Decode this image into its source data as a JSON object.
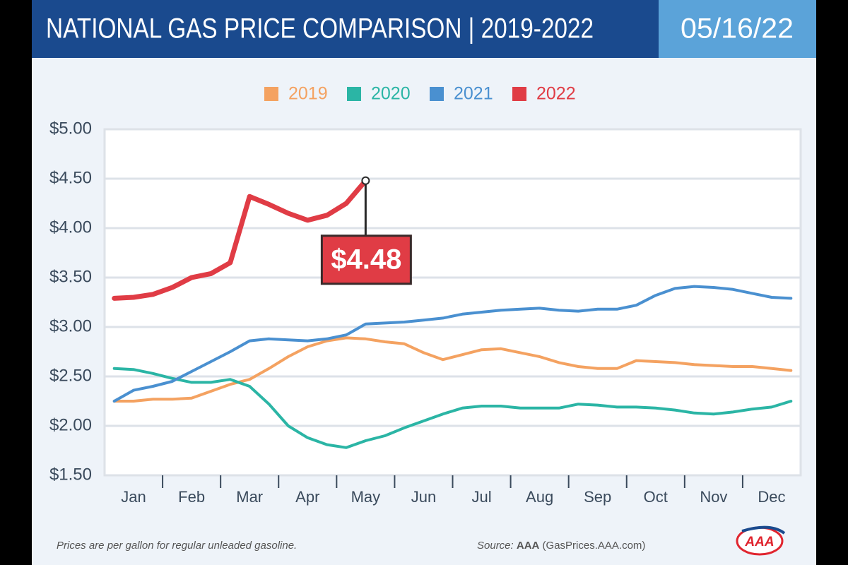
{
  "chart_data": {
    "type": "line",
    "title": "NATIONAL GAS PRICE COMPARISON | 2019-2022",
    "date": "05/16/22",
    "categories": [
      null,
      "Jan",
      null,
      null,
      "Feb",
      null,
      null,
      "Mar",
      null,
      null,
      "Apr",
      null,
      null,
      "May",
      null,
      null,
      "Jun",
      null,
      null,
      "Jul",
      null,
      null,
      "Aug",
      null,
      null,
      "Sep",
      null,
      null,
      "Oct",
      null,
      null,
      "Nov",
      null,
      null,
      "Dec",
      null
    ],
    "series": [
      {
        "name": "2019",
        "color": "#f4a261",
        "values": [
          2.25,
          2.25,
          2.27,
          2.27,
          2.28,
          2.35,
          2.42,
          2.47,
          2.58,
          2.7,
          2.8,
          2.86,
          2.89,
          2.88,
          2.85,
          2.83,
          2.74,
          2.67,
          2.72,
          2.77,
          2.78,
          2.74,
          2.7,
          2.64,
          2.6,
          2.58,
          2.58,
          2.66,
          2.65,
          2.64,
          2.62,
          2.61,
          2.6,
          2.6,
          2.58,
          2.56
        ]
      },
      {
        "name": "2020",
        "color": "#2bb5a5",
        "values": [
          2.58,
          2.57,
          2.53,
          2.48,
          2.44,
          2.44,
          2.47,
          2.4,
          2.22,
          2.0,
          1.88,
          1.81,
          1.78,
          1.85,
          1.9,
          1.98,
          2.05,
          2.12,
          2.18,
          2.2,
          2.2,
          2.18,
          2.18,
          2.18,
          2.22,
          2.21,
          2.19,
          2.19,
          2.18,
          2.16,
          2.13,
          2.12,
          2.14,
          2.17,
          2.19,
          2.25
        ]
      },
      {
        "name": "2021",
        "color": "#4a90d0",
        "values": [
          2.25,
          2.36,
          2.4,
          2.45,
          2.55,
          2.65,
          2.75,
          2.86,
          2.88,
          2.87,
          2.86,
          2.88,
          2.92,
          3.03,
          3.04,
          3.05,
          3.07,
          3.09,
          3.13,
          3.15,
          3.17,
          3.18,
          3.19,
          3.17,
          3.16,
          3.18,
          3.18,
          3.22,
          3.32,
          3.39,
          3.41,
          3.4,
          3.38,
          3.34,
          3.3,
          3.29
        ]
      },
      {
        "name": "2022",
        "color": "#e03c45",
        "values": [
          3.29,
          3.3,
          3.33,
          3.4,
          3.5,
          3.54,
          3.65,
          4.32,
          4.24,
          4.15,
          4.08,
          4.13,
          4.25,
          4.48,
          null,
          null,
          null,
          null,
          null,
          null,
          null,
          null,
          null,
          null,
          null,
          null,
          null,
          null,
          null,
          null,
          null,
          null,
          null,
          null,
          null,
          null
        ],
        "value_labels": [
          null,
          null,
          null,
          null,
          null,
          null,
          null,
          null,
          null,
          null,
          null,
          null,
          null,
          "$4.48",
          null,
          null,
          null,
          null,
          null,
          null,
          null,
          null,
          null,
          null,
          null,
          null,
          null,
          null,
          null,
          null,
          null,
          null,
          null,
          null,
          null,
          null
        ]
      }
    ],
    "ylim": [
      1.5,
      5
    ],
    "yticks": [
      {
        "value": 1.5,
        "label": "$1.50"
      },
      {
        "value": 2,
        "label": "$2.00"
      },
      {
        "value": 2.5,
        "label": "$2.50"
      },
      {
        "value": 3,
        "label": "$3.00"
      },
      {
        "value": 3.5,
        "label": "$3.50"
      },
      {
        "value": 4,
        "label": "$4.00"
      },
      {
        "value": 4.5,
        "label": "$4.50"
      },
      {
        "value": 5,
        "label": "$5.00"
      }
    ],
    "grid": true,
    "legend": "top",
    "note": "Prices are per gallon for regular unleaded gasoline.",
    "source_prefix": "Source:",
    "source_name": "AAA",
    "source_site": "(GasPrices.AAA.com)",
    "logo": "AAA"
  }
}
